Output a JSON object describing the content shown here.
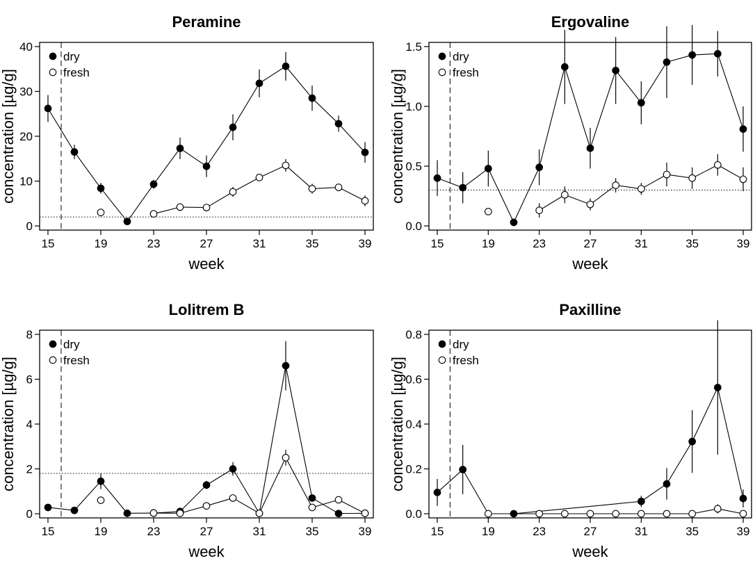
{
  "chart_data": [
    {
      "type": "line",
      "title": "Peramine",
      "xlabel": "week",
      "ylabel": "concentration [µg/g]",
      "xlim": [
        15,
        39
      ],
      "ylim": [
        0,
        40
      ],
      "xticks": [
        "15",
        "19",
        "23",
        "27",
        "31",
        "35",
        "39"
      ],
      "yticks": [
        "0",
        "10",
        "20",
        "30",
        "40"
      ],
      "vline_week": 16,
      "hline_value": 2,
      "legend": {
        "position": "top-left",
        "entries": [
          "dry",
          "fresh"
        ]
      },
      "series": [
        {
          "name": "dry",
          "x": [
            15,
            17,
            19,
            21,
            23,
            25,
            27,
            29,
            31,
            33,
            35,
            37,
            39
          ],
          "y": [
            26.2,
            16.5,
            8.4,
            1.0,
            9.3,
            17.3,
            13.3,
            22.0,
            31.8,
            35.6,
            28.5,
            22.8,
            16.4
          ],
          "err": [
            3.0,
            1.6,
            1.2,
            0.3,
            1.0,
            2.4,
            2.4,
            2.9,
            3.1,
            3.2,
            2.8,
            1.8,
            2.3
          ],
          "connect": [
            true,
            true,
            true,
            true,
            true,
            true,
            true,
            true,
            true,
            true,
            true,
            true
          ]
        },
        {
          "name": "fresh",
          "x": [
            19,
            23,
            25,
            27,
            29,
            31,
            33,
            35,
            37,
            39
          ],
          "y": [
            3.0,
            2.7,
            4.2,
            4.1,
            7.6,
            10.8,
            13.5,
            8.3,
            8.6,
            5.6
          ],
          "err": [
            0.4,
            0.4,
            0.4,
            0.4,
            1.1,
            0.6,
            1.4,
            1.1,
            0.6,
            1.2
          ],
          "connect": [
            false,
            true,
            true,
            true,
            true,
            true,
            true,
            true,
            true
          ]
        }
      ]
    },
    {
      "type": "line",
      "title": "Ergovaline",
      "xlabel": "week",
      "ylabel": "concentration [µg/g]",
      "xlim": [
        15,
        39
      ],
      "ylim": [
        0,
        1.5
      ],
      "xticks": [
        "15",
        "19",
        "23",
        "27",
        "31",
        "35",
        "39"
      ],
      "yticks": [
        "0.0",
        "0.5",
        "1.0",
        "1.5"
      ],
      "vline_week": 16,
      "hline_value": 0.3,
      "legend": {
        "position": "top-left",
        "entries": [
          "dry",
          "fresh"
        ]
      },
      "series": [
        {
          "name": "dry",
          "x": [
            15,
            17,
            19,
            21,
            23,
            25,
            27,
            29,
            31,
            33,
            35,
            37,
            39
          ],
          "y": [
            0.4,
            0.32,
            0.48,
            0.03,
            0.49,
            1.33,
            0.65,
            1.3,
            1.03,
            1.37,
            1.43,
            1.44,
            0.81
          ],
          "err": [
            0.15,
            0.13,
            0.15,
            0.02,
            0.15,
            0.31,
            0.17,
            0.28,
            0.18,
            0.3,
            0.25,
            0.19,
            0.19
          ],
          "connect": [
            true,
            true,
            true,
            true,
            true,
            true,
            true,
            true,
            true,
            true,
            true,
            true
          ]
        },
        {
          "name": "fresh",
          "x": [
            19,
            23,
            25,
            27,
            29,
            31,
            33,
            35,
            37,
            39
          ],
          "y": [
            0.12,
            0.13,
            0.26,
            0.18,
            0.34,
            0.31,
            0.43,
            0.4,
            0.51,
            0.39
          ],
          "err": [
            0.02,
            0.06,
            0.07,
            0.05,
            0.06,
            0.05,
            0.1,
            0.09,
            0.09,
            0.1
          ],
          "connect": [
            false,
            true,
            true,
            true,
            true,
            true,
            true,
            true,
            true
          ]
        }
      ]
    },
    {
      "type": "line",
      "title": "Lolitrem B",
      "xlabel": "week",
      "ylabel": "concentration [µg/g]",
      "xlim": [
        15,
        39
      ],
      "ylim": [
        0,
        8
      ],
      "xticks": [
        "15",
        "19",
        "23",
        "27",
        "31",
        "35",
        "39"
      ],
      "yticks": [
        "0",
        "2",
        "4",
        "6",
        "8"
      ],
      "vline_week": 16,
      "hline_value": 1.8,
      "legend": {
        "position": "top-left",
        "entries": [
          "dry",
          "fresh"
        ]
      },
      "series": [
        {
          "name": "dry",
          "x": [
            15,
            17,
            19,
            21,
            23,
            25,
            27,
            29,
            31,
            33,
            35,
            37,
            39
          ],
          "y": [
            0.28,
            0.15,
            1.45,
            0.02,
            0.03,
            0.1,
            1.28,
            2.0,
            0.02,
            6.6,
            0.7,
            0.01,
            0.02
          ],
          "err": [
            0.03,
            0.03,
            0.35,
            0.02,
            0.02,
            0.05,
            0.18,
            0.3,
            0.02,
            1.1,
            0.1,
            0.02,
            0.02
          ],
          "connect": [
            true,
            true,
            true,
            true,
            true,
            true,
            true,
            true,
            true,
            true,
            true,
            true
          ]
        },
        {
          "name": "fresh",
          "x": [
            19,
            23,
            25,
            27,
            29,
            31,
            33,
            35,
            37,
            39
          ],
          "y": [
            0.6,
            0.03,
            0.02,
            0.35,
            0.7,
            0.02,
            2.5,
            0.28,
            0.62,
            0.02
          ],
          "err": [
            0.05,
            0.02,
            0.02,
            0.05,
            0.08,
            0.02,
            0.35,
            0.05,
            0.05,
            0.02
          ],
          "connect": [
            false,
            true,
            true,
            true,
            true,
            true,
            true,
            true,
            true
          ]
        }
      ]
    },
    {
      "type": "line",
      "title": "Paxilline",
      "xlabel": "week",
      "ylabel": "concentration [µg/g]",
      "xlim": [
        15,
        39
      ],
      "ylim": [
        0,
        0.8
      ],
      "xticks": [
        "15",
        "19",
        "23",
        "27",
        "31",
        "35",
        "39"
      ],
      "yticks": [
        "0.0",
        "0.2",
        "0.4",
        "0.6",
        "0.8"
      ],
      "vline_week": 16,
      "hline_value": null,
      "legend": {
        "position": "top-left",
        "entries": [
          "dry",
          "fresh"
        ]
      },
      "series": [
        {
          "name": "dry",
          "x": [
            15,
            17,
            21,
            31,
            33,
            35,
            37,
            39
          ],
          "y": [
            0.095,
            0.197,
            0.0,
            0.055,
            0.133,
            0.322,
            0.563,
            0.068
          ],
          "err": [
            0.06,
            0.11,
            0.0,
            0.025,
            0.07,
            0.14,
            0.3,
            0.04
          ],
          "connect": [
            true,
            false,
            true,
            true,
            true,
            true,
            true
          ]
        },
        {
          "name": "fresh",
          "x": [
            19,
            23,
            25,
            27,
            29,
            31,
            33,
            35,
            37,
            39
          ],
          "y": [
            0,
            0,
            0,
            0,
            0,
            0,
            0,
            0,
            0.022,
            0
          ],
          "err": [
            0,
            0,
            0,
            0,
            0,
            0,
            0,
            0,
            0.02,
            0
          ],
          "connect": [
            true,
            true,
            true,
            true,
            true,
            true,
            true,
            true,
            true
          ]
        },
        {
          "name": "fresh-to-dry-link",
          "x": [
            17,
            19
          ],
          "y": [
            0.197,
            0
          ],
          "err": [
            0,
            0
          ],
          "connect": [
            true
          ],
          "line_only": true
        }
      ]
    }
  ]
}
